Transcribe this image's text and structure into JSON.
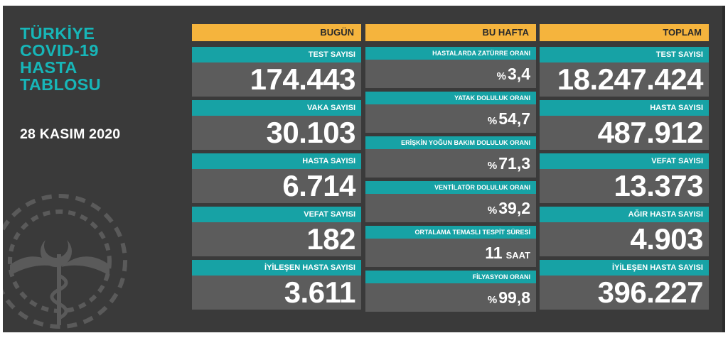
{
  "header": {
    "title_lines": [
      "TÜRKİYE",
      "COVID-19",
      "HASTA",
      "TABLOSU"
    ],
    "date": "28 KASIM 2020"
  },
  "today": {
    "heading": "BUGÜN",
    "cards": [
      {
        "label": "TEST SAYISI",
        "value": "174.443"
      },
      {
        "label": "VAKA SAYISI",
        "value": "30.103"
      },
      {
        "label": "HASTA SAYISI",
        "value": "6.714"
      },
      {
        "label": "VEFAT SAYISI",
        "value": "182"
      },
      {
        "label": "İYİLEŞEN HASTA SAYISI",
        "value": "3.611"
      }
    ]
  },
  "week": {
    "heading": "BU HAFTA",
    "cards": [
      {
        "label": "HASTALARDA ZATÜRRE ORANI",
        "prefix": "%",
        "value": "3,4",
        "unit": ""
      },
      {
        "label": "YATAK DOLULUK ORANI",
        "prefix": "%",
        "value": "54,7",
        "unit": ""
      },
      {
        "label": "ERİŞKİN YOĞUN BAKIM DOLULUK ORANI",
        "prefix": "%",
        "value": "71,3",
        "unit": ""
      },
      {
        "label": "VENTİLATÖR DOLULUK ORANI",
        "prefix": "%",
        "value": "39,2",
        "unit": ""
      },
      {
        "label": "ORTALAMA TEMASLI TESPİT SÜRESİ",
        "prefix": "",
        "value": "11",
        "unit": "SAAT"
      },
      {
        "label": "FİLYASYON ORANI",
        "prefix": "%",
        "value": "99,8",
        "unit": ""
      }
    ]
  },
  "total": {
    "heading": "TOPLAM",
    "cards": [
      {
        "label": "TEST SAYISI",
        "value": "18.247.424"
      },
      {
        "label": "HASTA SAYISI",
        "value": "487.912"
      },
      {
        "label": "VEFAT SAYISI",
        "value": "13.373"
      },
      {
        "label": "AĞIR HASTA SAYISI",
        "value": "4.903"
      },
      {
        "label": "İYİLEŞEN HASTA SAYISI",
        "value": "396.227"
      }
    ]
  },
  "colors": {
    "accent_teal": "#17a2a5",
    "header_orange": "#f5b43d",
    "panel_bg": "#3a3a3a",
    "value_bg": "#5c5c5c"
  },
  "icons": {
    "emblem": "ministry-of-health-emblem-icon"
  }
}
